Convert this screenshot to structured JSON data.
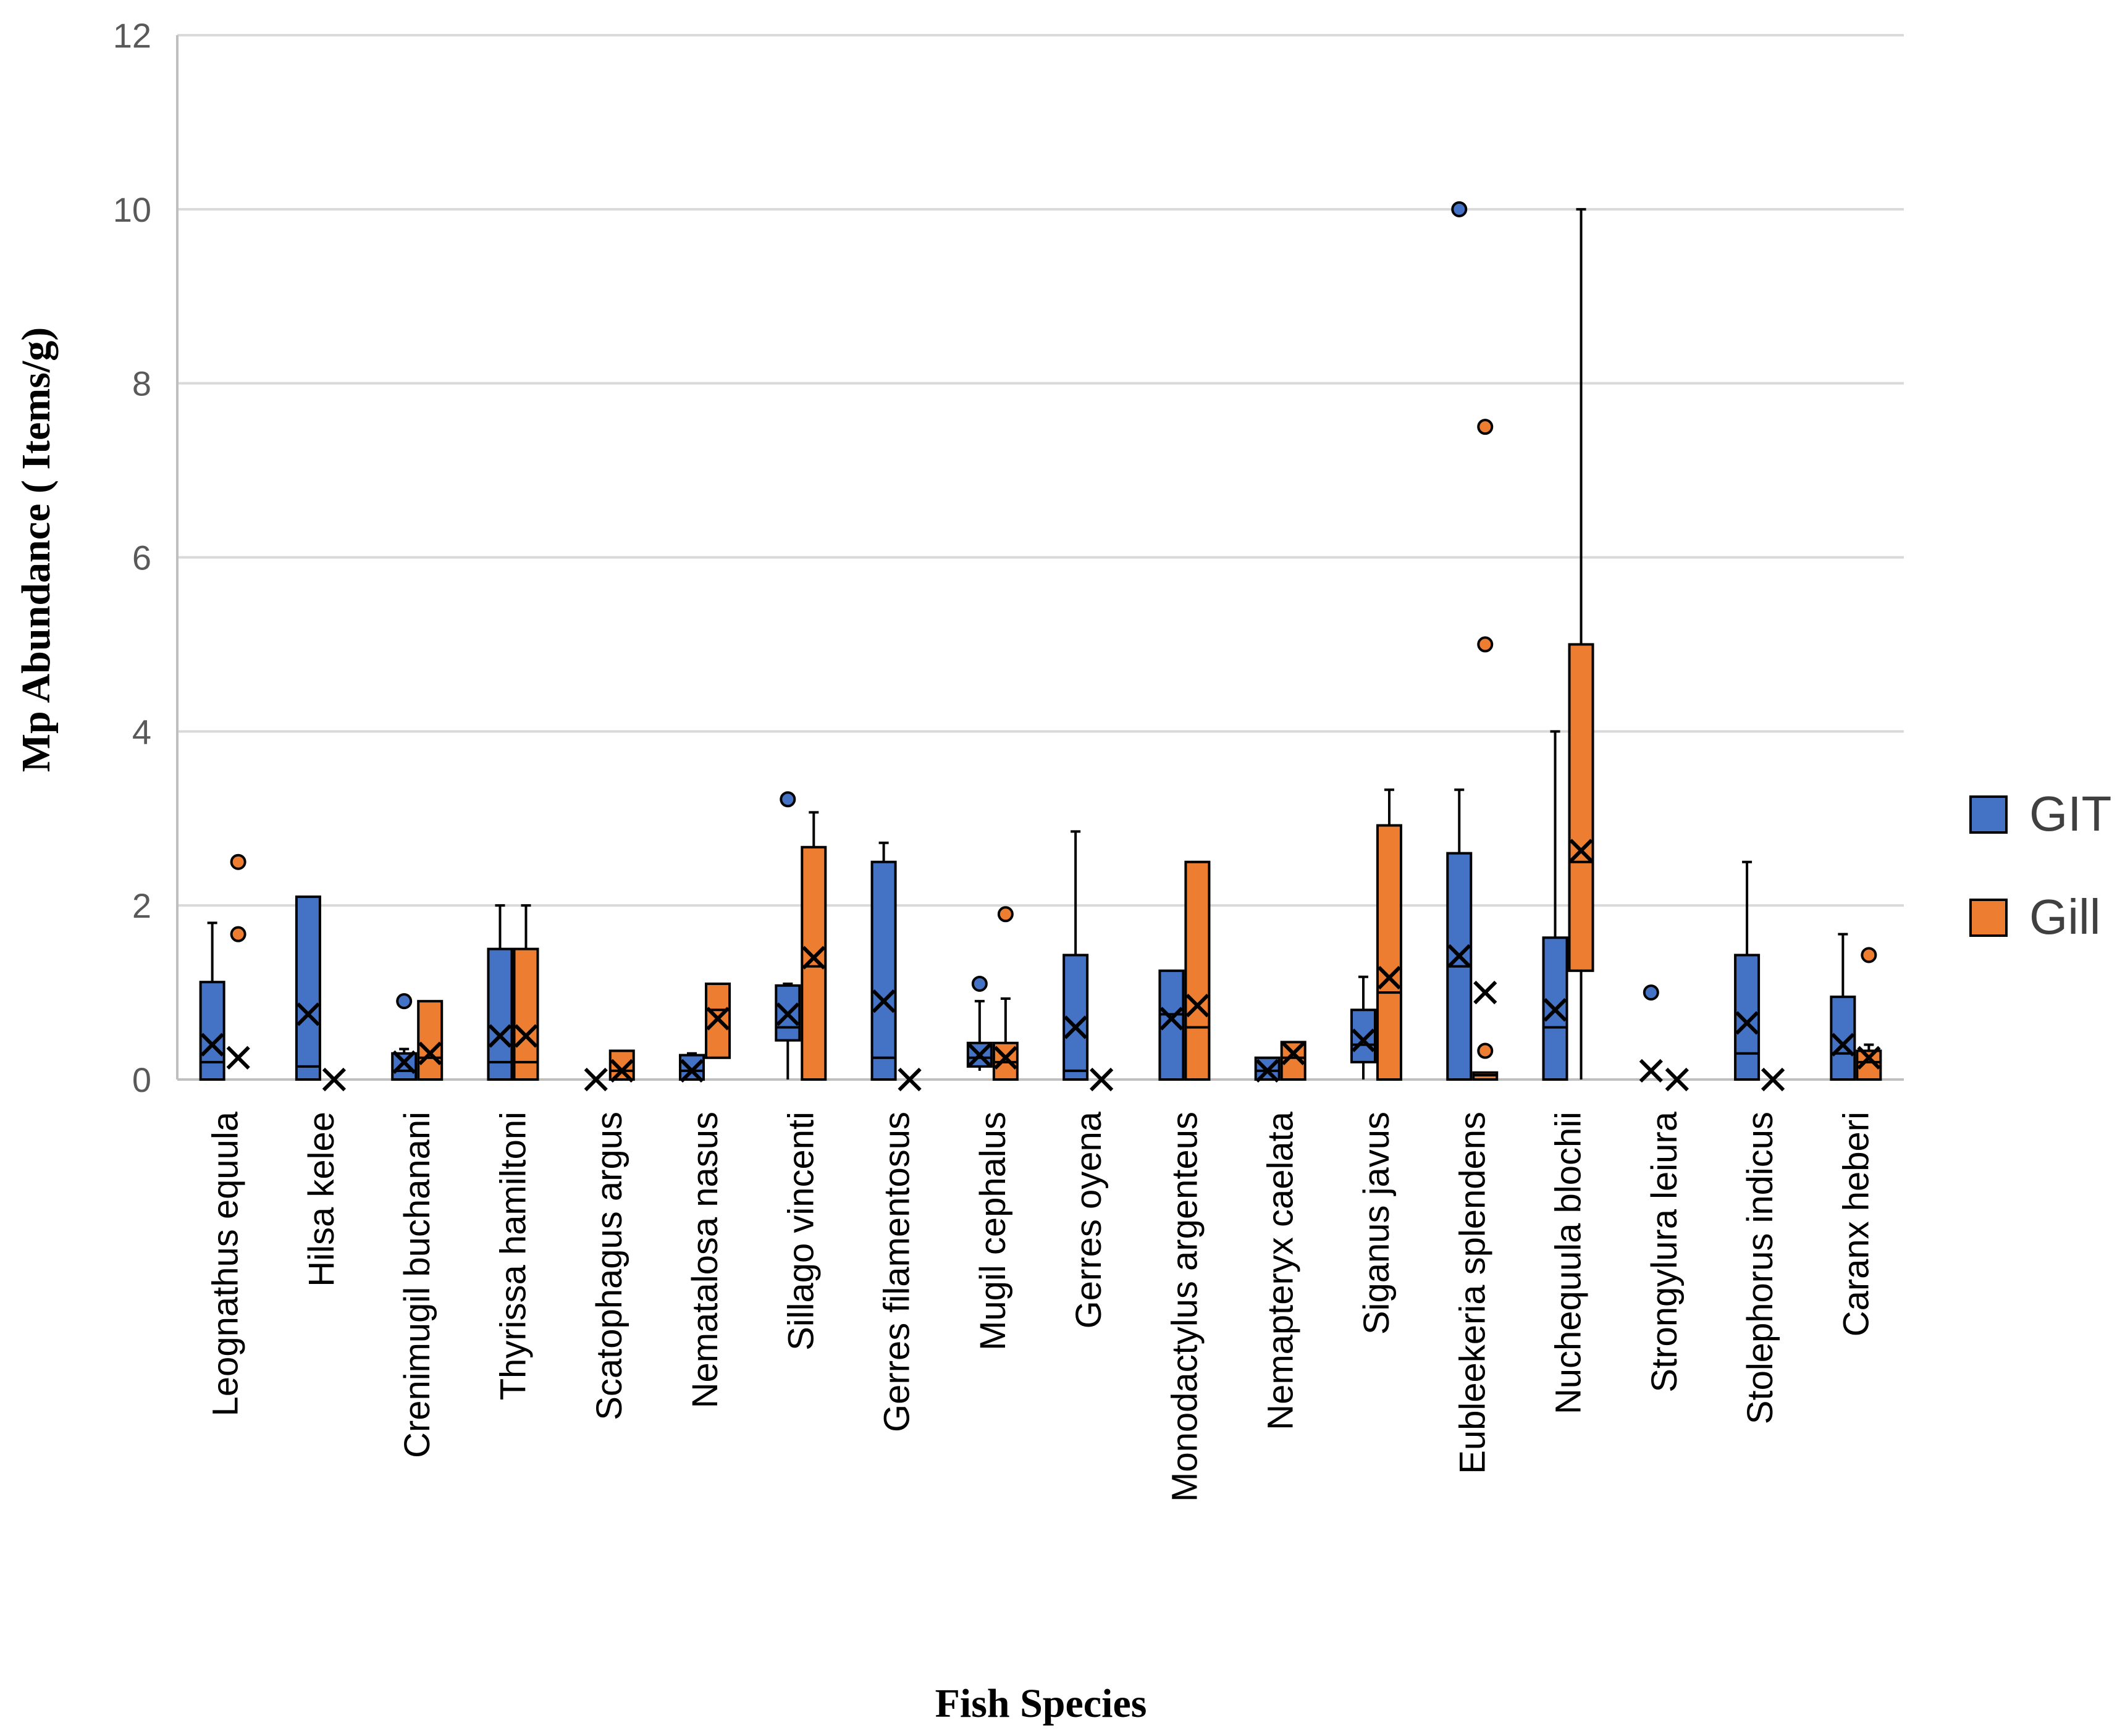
{
  "colors": {
    "git": "#4472C4",
    "gill": "#ED7D31",
    "grid": "#d9d9d9",
    "axis": "#bfbfbf",
    "stroke": "#000000"
  },
  "chart_data": {
    "type": "box",
    "title": "",
    "xlabel": "Fish Species",
    "ylabel": "Mp Abundance ( Items/g)",
    "ylim": [
      0,
      12
    ],
    "yticks": [
      "0",
      "2",
      "4",
      "6",
      "8",
      "10",
      "12"
    ],
    "grid": true,
    "legend_position": "right",
    "categories": [
      "Leognathus equula",
      "Hilsa kelee",
      "Crenimugil buchanani",
      "Thyrissa hamiltoni",
      "Scatophagus argus",
      "Nematalosa nasus",
      "Sillago vincenti",
      "Gerres filamentosus",
      "Mugil cephalus",
      "Gerres oyena",
      "Monodactylus argenteus",
      "Nemapteryx caelata",
      "Siganus javus",
      "Eubleekeria splendens",
      "Nuchequula blochii",
      "Strongylura leiura",
      "Stolephorus indicus",
      "Caranx heberi"
    ],
    "series": [
      {
        "name": "GIT",
        "color": "#4472C4",
        "boxes": [
          {
            "min": 0,
            "q1": 0,
            "median": 0.2,
            "q3": 1.12,
            "max": 1.8,
            "mean": 0.4,
            "outliers": []
          },
          {
            "min": 0,
            "q1": 0,
            "median": 0.15,
            "q3": 2.1,
            "max": 2.1,
            "mean": 0.75,
            "outliers": []
          },
          {
            "min": 0,
            "q1": 0,
            "median": 0.1,
            "q3": 0.3,
            "max": 0.35,
            "mean": 0.2,
            "outliers": [
              0.9
            ]
          },
          {
            "min": 0,
            "q1": 0,
            "median": 0.2,
            "q3": 1.5,
            "max": 2.0,
            "mean": 0.5,
            "outliers": []
          },
          {
            "min": 0,
            "q1": 0,
            "median": 0,
            "q3": 0,
            "max": 0,
            "mean": 0,
            "outliers": []
          },
          {
            "min": 0,
            "q1": 0,
            "median": 0.1,
            "q3": 0.28,
            "max": 0.3,
            "mean": 0.1,
            "outliers": []
          },
          {
            "min": 0,
            "q1": 0.45,
            "median": 0.6,
            "q3": 1.08,
            "max": 1.1,
            "mean": 0.75,
            "outliers": [
              3.22
            ]
          },
          {
            "min": 0,
            "q1": 0,
            "median": 0.25,
            "q3": 2.5,
            "max": 2.72,
            "mean": 0.9,
            "outliers": []
          },
          {
            "min": 0.1,
            "q1": 0.15,
            "median": 0.25,
            "q3": 0.42,
            "max": 0.9,
            "mean": 0.28,
            "outliers": [
              1.1
            ]
          },
          {
            "min": 0,
            "q1": 0,
            "median": 0.1,
            "q3": 1.43,
            "max": 2.85,
            "mean": 0.6,
            "outliers": []
          },
          {
            "min": 0,
            "q1": 0,
            "median": 0.75,
            "q3": 1.25,
            "max": 1.25,
            "mean": 0.7,
            "outliers": []
          },
          {
            "min": 0,
            "q1": 0,
            "median": 0.1,
            "q3": 0.25,
            "max": 0.25,
            "mean": 0.1,
            "outliers": []
          },
          {
            "min": 0,
            "q1": 0.2,
            "median": 0.4,
            "q3": 0.8,
            "max": 1.18,
            "mean": 0.45,
            "outliers": []
          },
          {
            "min": 0,
            "q1": 0,
            "median": 1.3,
            "q3": 2.6,
            "max": 3.33,
            "mean": 1.42,
            "outliers": [
              10.0
            ]
          },
          {
            "min": 0,
            "q1": 0,
            "median": 0.6,
            "q3": 1.63,
            "max": 4.0,
            "mean": 0.8,
            "outliers": []
          },
          {
            "min": 0,
            "q1": 0,
            "median": 0,
            "q3": 0,
            "max": 0,
            "mean": 0.1,
            "outliers": [
              1.0
            ]
          },
          {
            "min": 0,
            "q1": 0,
            "median": 0.3,
            "q3": 1.43,
            "max": 2.5,
            "mean": 0.65,
            "outliers": []
          },
          {
            "min": 0,
            "q1": 0,
            "median": 0.3,
            "q3": 0.95,
            "max": 1.67,
            "mean": 0.4,
            "outliers": []
          }
        ]
      },
      {
        "name": "Gill",
        "color": "#ED7D31",
        "boxes": [
          {
            "min": 0,
            "q1": 0,
            "median": 0,
            "q3": 0,
            "max": 0,
            "mean": 0.25,
            "outliers": [
              2.5,
              1.67
            ]
          },
          {
            "min": 0,
            "q1": 0,
            "median": 0,
            "q3": 0,
            "max": 0,
            "mean": 0,
            "outliers": []
          },
          {
            "min": 0,
            "q1": 0,
            "median": 0.25,
            "q3": 0.9,
            "max": 0.9,
            "mean": 0.3,
            "outliers": []
          },
          {
            "min": 0,
            "q1": 0,
            "median": 0.2,
            "q3": 1.5,
            "max": 2.0,
            "mean": 0.5,
            "outliers": []
          },
          {
            "min": 0,
            "q1": 0,
            "median": 0.1,
            "q3": 0.33,
            "max": 0.33,
            "mean": 0.1,
            "outliers": []
          },
          {
            "min": 0.25,
            "q1": 0.25,
            "median": 0.8,
            "q3": 1.1,
            "max": 1.1,
            "mean": 0.7,
            "outliers": []
          },
          {
            "min": 0,
            "q1": 0,
            "median": 1.3,
            "q3": 2.67,
            "max": 3.07,
            "mean": 1.4,
            "outliers": []
          },
          {
            "min": 0,
            "q1": 0,
            "median": 0,
            "q3": 0,
            "max": 0,
            "mean": 0,
            "outliers": []
          },
          {
            "min": 0,
            "q1": 0,
            "median": 0.2,
            "q3": 0.42,
            "max": 0.93,
            "mean": 0.25,
            "outliers": [
              1.9
            ]
          },
          {
            "min": 0,
            "q1": 0,
            "median": 0,
            "q3": 0,
            "max": 0,
            "mean": 0,
            "outliers": []
          },
          {
            "min": 0,
            "q1": 0,
            "median": 0.6,
            "q3": 2.5,
            "max": 2.5,
            "mean": 0.85,
            "outliers": []
          },
          {
            "min": 0,
            "q1": 0,
            "median": 0.25,
            "q3": 0.43,
            "max": 0.43,
            "mean": 0.3,
            "outliers": []
          },
          {
            "min": 0,
            "q1": 0,
            "median": 1.0,
            "q3": 2.92,
            "max": 3.33,
            "mean": 1.17,
            "outliers": []
          },
          {
            "min": 0,
            "q1": 0,
            "median": 0.05,
            "q3": 0.08,
            "max": 0.08,
            "mean": 1.0,
            "outliers": [
              7.5,
              5.0,
              0.33
            ]
          },
          {
            "min": 0,
            "q1": 1.25,
            "median": 2.5,
            "q3": 5.0,
            "max": 10.0,
            "mean": 2.63,
            "outliers": []
          },
          {
            "min": 0,
            "q1": 0,
            "median": 0,
            "q3": 0,
            "max": 0,
            "mean": 0,
            "outliers": []
          },
          {
            "min": 0,
            "q1": 0,
            "median": 0,
            "q3": 0,
            "max": 0,
            "mean": 0,
            "outliers": []
          },
          {
            "min": 0,
            "q1": 0,
            "median": 0.2,
            "q3": 0.33,
            "max": 0.4,
            "mean": 0.25,
            "outliers": [
              1.43
            ]
          }
        ]
      }
    ]
  }
}
